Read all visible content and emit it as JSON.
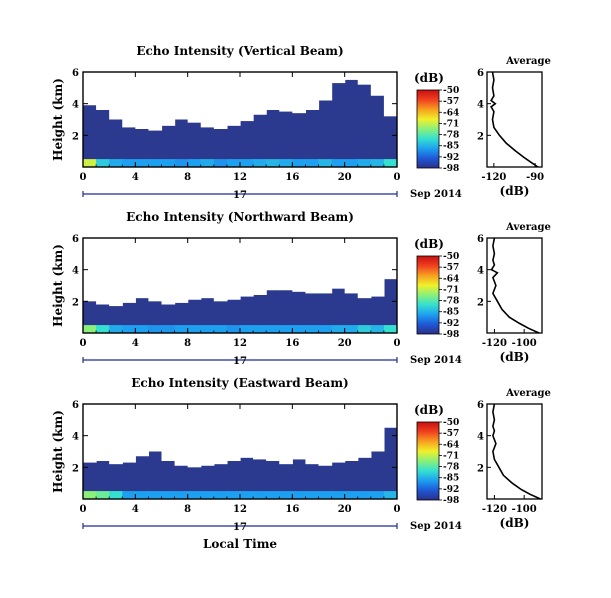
{
  "figure": {
    "xlabel": "Local Time",
    "colorbar_unit": "(dB)",
    "colorbar_ticks": [
      "-50",
      "-57",
      "-64",
      "-71",
      "-78",
      "-85",
      "-92",
      "-98"
    ],
    "date_label": "Sep 2014",
    "day_label": "17",
    "colors": {
      "background_echo": "#2b3a8f",
      "noecho": "#ffffff",
      "colormap": [
        "#2b2f88",
        "#1f58d6",
        "#1ea0f0",
        "#35e0d0",
        "#8af07a",
        "#f0f02a",
        "#f7a020",
        "#f04020",
        "#c81010"
      ]
    }
  },
  "chart_data": [
    {
      "type": "heatmap",
      "title": "Echo Intensity (Vertical Beam)",
      "ylabel": "Height (km)",
      "x_ticks": [
        "0",
        "4",
        "8",
        "12",
        "16",
        "20",
        "0"
      ],
      "y_ticks": [
        "2",
        "4",
        "6"
      ],
      "xlim": [
        0,
        24
      ],
      "ylim": [
        0,
        6
      ],
      "unit": "dB",
      "clim": [
        -98,
        -50
      ],
      "no_echo_above_km": [
        3.9,
        3.6,
        3.0,
        2.5,
        2.4,
        2.3,
        2.6,
        3.0,
        2.8,
        2.5,
        2.4,
        2.6,
        2.9,
        3.3,
        3.6,
        3.5,
        3.4,
        3.6,
        4.2,
        5.3,
        5.5,
        5.2,
        4.5,
        3.2
      ],
      "near_surface_echo_db": [
        -70,
        -82,
        -85,
        -86,
        -86,
        -86,
        -86,
        -87,
        -86,
        -85,
        -87,
        -86,
        -86,
        -85,
        -84,
        -85,
        -86,
        -86,
        -84,
        -86,
        -86,
        -85,
        -84,
        -80
      ],
      "average_profile": {
        "title": "Average",
        "xlabel": "(dB)",
        "x_ticks": [
          "-120",
          "-90"
        ],
        "xlim": [
          -125,
          -85
        ],
        "heights_km": [
          0.0,
          0.3,
          0.6,
          1.0,
          1.5,
          2.0,
          2.5,
          3.0,
          3.5,
          3.8,
          4.0,
          4.2,
          4.5,
          5.0,
          5.5,
          6.0
        ],
        "values_db": [
          -88,
          -93,
          -98,
          -104,
          -111,
          -116,
          -120,
          -121,
          -120,
          -122,
          -119,
          -122,
          -120,
          -121,
          -120,
          -121
        ]
      }
    },
    {
      "type": "heatmap",
      "title": "Echo Intensity (Northward Beam)",
      "ylabel": "Height (km)",
      "x_ticks": [
        "0",
        "4",
        "8",
        "12",
        "16",
        "20",
        "0"
      ],
      "y_ticks": [
        "2",
        "4",
        "6"
      ],
      "xlim": [
        0,
        24
      ],
      "ylim": [
        0,
        6
      ],
      "unit": "dB",
      "clim": [
        -98,
        -50
      ],
      "no_echo_above_km": [
        2.0,
        1.8,
        1.7,
        1.9,
        2.2,
        2.0,
        1.8,
        1.9,
        2.1,
        2.2,
        2.0,
        2.1,
        2.3,
        2.4,
        2.7,
        2.7,
        2.6,
        2.5,
        2.5,
        2.8,
        2.5,
        2.2,
        2.3,
        3.4
      ],
      "near_surface_echo_db": [
        -74,
        -80,
        -85,
        -86,
        -86,
        -87,
        -87,
        -86,
        -86,
        -86,
        -86,
        -87,
        -86,
        -86,
        -86,
        -86,
        -86,
        -86,
        -86,
        -85,
        -85,
        -82,
        -84,
        -80
      ],
      "average_profile": {
        "title": "Average",
        "xlabel": "(dB)",
        "x_ticks": [
          "-120",
          "-100"
        ],
        "xlim": [
          -125,
          -88
        ],
        "heights_km": [
          0.0,
          0.3,
          0.6,
          1.0,
          1.5,
          2.0,
          2.5,
          3.0,
          3.5,
          3.8,
          4.0,
          4.3,
          4.6,
          5.0,
          5.5,
          6.0
        ],
        "values_db": [
          -90,
          -97,
          -103,
          -110,
          -115,
          -118,
          -121,
          -119,
          -121,
          -118,
          -122,
          -120,
          -121,
          -120,
          -121,
          -120
        ]
      }
    },
    {
      "type": "heatmap",
      "title": "Echo Intensity (Eastward Beam)",
      "ylabel": "Height (km)",
      "x_ticks": [
        "0",
        "4",
        "8",
        "12",
        "16",
        "20",
        "0"
      ],
      "y_ticks": [
        "2",
        "4",
        "6"
      ],
      "xlim": [
        0,
        24
      ],
      "ylim": [
        0,
        6
      ],
      "unit": "dB",
      "clim": [
        -98,
        -50
      ],
      "no_echo_above_km": [
        2.3,
        2.4,
        2.2,
        2.3,
        2.7,
        3.0,
        2.4,
        2.1,
        2.0,
        2.1,
        2.2,
        2.4,
        2.6,
        2.5,
        2.4,
        2.2,
        2.5,
        2.2,
        2.1,
        2.3,
        2.4,
        2.6,
        3.0,
        4.5
      ],
      "near_surface_echo_db": [
        -74,
        -76,
        -80,
        -86,
        -86,
        -86,
        -86,
        -86,
        -86,
        -86,
        -86,
        -86,
        -86,
        -86,
        -86,
        -86,
        -86,
        -86,
        -86,
        -86,
        -86,
        -86,
        -86,
        -84
      ],
      "average_profile": {
        "title": "Average",
        "xlabel": "(dB)",
        "x_ticks": [
          "-120",
          "-100"
        ],
        "xlim": [
          -125,
          -88
        ],
        "heights_km": [
          0.0,
          0.3,
          0.6,
          1.0,
          1.5,
          2.0,
          2.5,
          3.0,
          3.5,
          4.0,
          4.3,
          4.6,
          5.0,
          5.5,
          6.0
        ],
        "values_db": [
          -89,
          -96,
          -102,
          -108,
          -114,
          -117,
          -120,
          -121,
          -119,
          -121,
          -120,
          -121,
          -120,
          -121,
          -120
        ]
      }
    }
  ]
}
